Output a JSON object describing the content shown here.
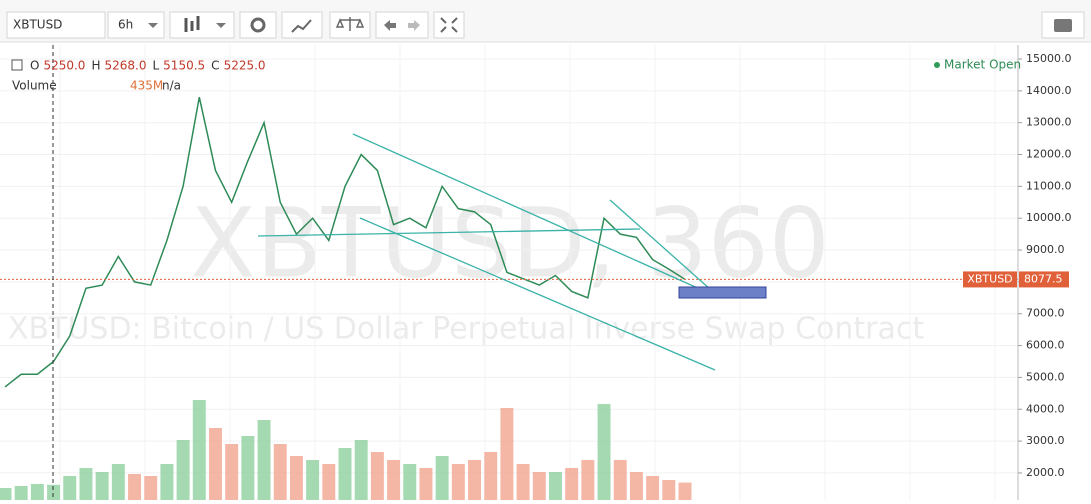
{
  "toolbar": {
    "symbol": "XBTUSD",
    "interval": "6h"
  },
  "legend": {
    "ohlc": [
      {
        "key": "O",
        "value": "5250.0"
      },
      {
        "key": "H",
        "value": "5268.0"
      },
      {
        "key": "L",
        "value": "5150.5"
      },
      {
        "key": "C",
        "value": "5225.0"
      }
    ],
    "volume_label": "Volume",
    "volume_value": "435M",
    "volume_extra": "n/a"
  },
  "status": "Market Open",
  "watermark": {
    "ticker": "XBTUSD, 360",
    "description": "XBTUSD: Bitcoin / US Dollar Perpetual Inverse Swap Contract"
  },
  "last_price": {
    "label": "XBTUSD",
    "value": 8077.5
  },
  "chart_data": [
    {
      "type": "line",
      "color": "#2e8b57",
      "categories": [
        null,
        null,
        null,
        null,
        null,
        null,
        null,
        null,
        null,
        null,
        null,
        null,
        null,
        null,
        null,
        null,
        null,
        null,
        null,
        null,
        null,
        null,
        null,
        null,
        null,
        null,
        null,
        null,
        null,
        null,
        null,
        null,
        null,
        null,
        null,
        null,
        null,
        null,
        null,
        null,
        null,
        null,
        null
      ],
      "values": [
        4700,
        5100,
        5100,
        5500,
        6300,
        7800,
        7900,
        8800,
        8000,
        7900,
        9300,
        11000,
        13800,
        11500,
        10500,
        11800,
        13000,
        10500,
        9500,
        10000,
        9300,
        11000,
        12000,
        11500,
        9800,
        10000,
        9700,
        11000,
        10300,
        10200,
        9800,
        8300,
        8100,
        7900,
        8200,
        7700,
        7500,
        10000,
        9500,
        9400,
        8700,
        8400,
        8077.5
      ],
      "ylim": [
        1150,
        15440
      ],
      "yticks": [
        {
          "value": 2000,
          "label": "2000.0"
        },
        {
          "value": 3000,
          "label": "3000.0"
        },
        {
          "value": 4000,
          "label": "4000.0"
        },
        {
          "value": 5000,
          "label": "5000.0"
        },
        {
          "value": 6000,
          "label": "6000.0"
        },
        {
          "value": 7000,
          "label": "7000.0"
        },
        {
          "value": 8000,
          "label": "8000.0"
        },
        {
          "value": 9000,
          "label": "9000.0"
        },
        {
          "value": 10000,
          "label": "10000.0"
        },
        {
          "value": 11000,
          "label": "11000.0"
        },
        {
          "value": 12000,
          "label": "12000.0"
        },
        {
          "value": 13000,
          "label": "13000.0"
        },
        {
          "value": 14000,
          "label": "14000.0"
        },
        {
          "value": 15000,
          "label": "15000.0"
        }
      ],
      "grid": true
    },
    {
      "type": "bar",
      "up_color": "#8fcf9f",
      "down_color": "#f2a58f",
      "values": [
        300,
        350,
        400,
        380,
        600,
        800,
        700,
        900,
        650,
        600,
        900,
        1500,
        2500,
        1800,
        1400,
        1600,
        2000,
        1400,
        1100,
        1000,
        900,
        1300,
        1500,
        1200,
        1000,
        900,
        800,
        1100,
        900,
        1000,
        1200,
        2300,
        900,
        700,
        700,
        800,
        1000,
        2400,
        1000,
        700,
        600,
        500,
        435
      ],
      "ylim": [
        0,
        3000
      ]
    }
  ]
}
